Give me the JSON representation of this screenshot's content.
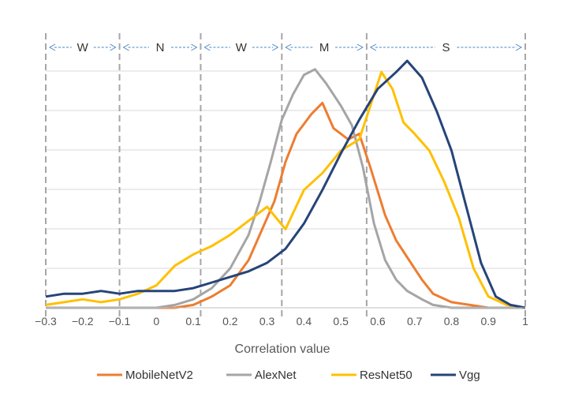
{
  "chart_data": {
    "type": "line",
    "title": "",
    "xlabel": "Correlation value",
    "ylabel": "",
    "xlim": [
      -0.3,
      1.0
    ],
    "x_ticks": [
      "-0.3",
      "-0.2",
      "-0.1",
      "0",
      "0.1",
      "0.2",
      "0.3",
      "0.4",
      "0.5",
      "0.6",
      "0.7",
      "0.8",
      "0.9",
      "1"
    ],
    "grid": "horizontal",
    "legend_position": "bottom",
    "regions": [
      {
        "label": "W",
        "start": -0.3,
        "end": -0.1
      },
      {
        "label": "N",
        "start": -0.1,
        "end": 0.12
      },
      {
        "label": "W",
        "start": 0.12,
        "end": 0.34
      },
      {
        "label": "M",
        "start": 0.34,
        "end": 0.57
      },
      {
        "label": "S",
        "start": 0.57,
        "end": 1.0
      }
    ],
    "region_boundaries": [
      -0.3,
      -0.1,
      0.12,
      0.34,
      0.57,
      1.0
    ],
    "series": [
      {
        "name": "MobileNetV2",
        "color": "#ED7D31",
        "points": [
          [
            -0.3,
            0
          ],
          [
            0.05,
            0
          ],
          [
            0.1,
            0.01
          ],
          [
            0.15,
            0.04
          ],
          [
            0.2,
            0.08
          ],
          [
            0.25,
            0.17
          ],
          [
            0.28,
            0.26
          ],
          [
            0.32,
            0.38
          ],
          [
            0.35,
            0.52
          ],
          [
            0.38,
            0.62
          ],
          [
            0.42,
            0.69
          ],
          [
            0.45,
            0.73
          ],
          [
            0.48,
            0.64
          ],
          [
            0.52,
            0.6
          ],
          [
            0.55,
            0.62
          ],
          [
            0.58,
            0.5
          ],
          [
            0.62,
            0.33
          ],
          [
            0.65,
            0.24
          ],
          [
            0.68,
            0.18
          ],
          [
            0.72,
            0.1
          ],
          [
            0.75,
            0.05
          ],
          [
            0.8,
            0.02
          ],
          [
            0.85,
            0.01
          ],
          [
            0.9,
            0
          ],
          [
            1.0,
            0
          ]
        ]
      },
      {
        "name": "AlexNet",
        "color": "#A5A5A5",
        "points": [
          [
            -0.3,
            0
          ],
          [
            0.0,
            0
          ],
          [
            0.05,
            0.01
          ],
          [
            0.1,
            0.03
          ],
          [
            0.15,
            0.07
          ],
          [
            0.2,
            0.14
          ],
          [
            0.25,
            0.26
          ],
          [
            0.28,
            0.38
          ],
          [
            0.31,
            0.52
          ],
          [
            0.34,
            0.67
          ],
          [
            0.37,
            0.76
          ],
          [
            0.4,
            0.83
          ],
          [
            0.43,
            0.85
          ],
          [
            0.46,
            0.8
          ],
          [
            0.5,
            0.72
          ],
          [
            0.53,
            0.65
          ],
          [
            0.56,
            0.5
          ],
          [
            0.59,
            0.3
          ],
          [
            0.62,
            0.17
          ],
          [
            0.65,
            0.1
          ],
          [
            0.68,
            0.06
          ],
          [
            0.72,
            0.03
          ],
          [
            0.75,
            0.01
          ],
          [
            0.8,
            0
          ],
          [
            1.0,
            0
          ]
        ]
      },
      {
        "name": "ResNet50",
        "color": "#FFC000",
        "points": [
          [
            -0.3,
            0.01
          ],
          [
            -0.25,
            0.02
          ],
          [
            -0.2,
            0.03
          ],
          [
            -0.15,
            0.02
          ],
          [
            -0.1,
            0.03
          ],
          [
            -0.05,
            0.05
          ],
          [
            0.0,
            0.08
          ],
          [
            0.05,
            0.15
          ],
          [
            0.1,
            0.19
          ],
          [
            0.15,
            0.22
          ],
          [
            0.2,
            0.26
          ],
          [
            0.25,
            0.31
          ],
          [
            0.3,
            0.36
          ],
          [
            0.35,
            0.28
          ],
          [
            0.4,
            0.42
          ],
          [
            0.45,
            0.48
          ],
          [
            0.5,
            0.56
          ],
          [
            0.55,
            0.6
          ],
          [
            0.58,
            0.72
          ],
          [
            0.61,
            0.84
          ],
          [
            0.64,
            0.78
          ],
          [
            0.67,
            0.66
          ],
          [
            0.7,
            0.62
          ],
          [
            0.74,
            0.56
          ],
          [
            0.78,
            0.45
          ],
          [
            0.82,
            0.32
          ],
          [
            0.86,
            0.14
          ],
          [
            0.9,
            0.04
          ],
          [
            0.95,
            0.01
          ],
          [
            1.0,
            0
          ]
        ]
      },
      {
        "name": "Vgg",
        "color": "#264478",
        "points": [
          [
            -0.3,
            0.04
          ],
          [
            -0.25,
            0.05
          ],
          [
            -0.2,
            0.05
          ],
          [
            -0.15,
            0.06
          ],
          [
            -0.1,
            0.05
          ],
          [
            -0.05,
            0.06
          ],
          [
            0.0,
            0.06
          ],
          [
            0.05,
            0.06
          ],
          [
            0.1,
            0.07
          ],
          [
            0.15,
            0.09
          ],
          [
            0.2,
            0.11
          ],
          [
            0.25,
            0.13
          ],
          [
            0.3,
            0.16
          ],
          [
            0.35,
            0.21
          ],
          [
            0.4,
            0.3
          ],
          [
            0.45,
            0.42
          ],
          [
            0.5,
            0.55
          ],
          [
            0.55,
            0.67
          ],
          [
            0.6,
            0.78
          ],
          [
            0.65,
            0.84
          ],
          [
            0.68,
            0.88
          ],
          [
            0.72,
            0.82
          ],
          [
            0.76,
            0.7
          ],
          [
            0.8,
            0.56
          ],
          [
            0.84,
            0.36
          ],
          [
            0.88,
            0.16
          ],
          [
            0.92,
            0.04
          ],
          [
            0.96,
            0.01
          ],
          [
            1.0,
            0
          ]
        ]
      }
    ]
  }
}
